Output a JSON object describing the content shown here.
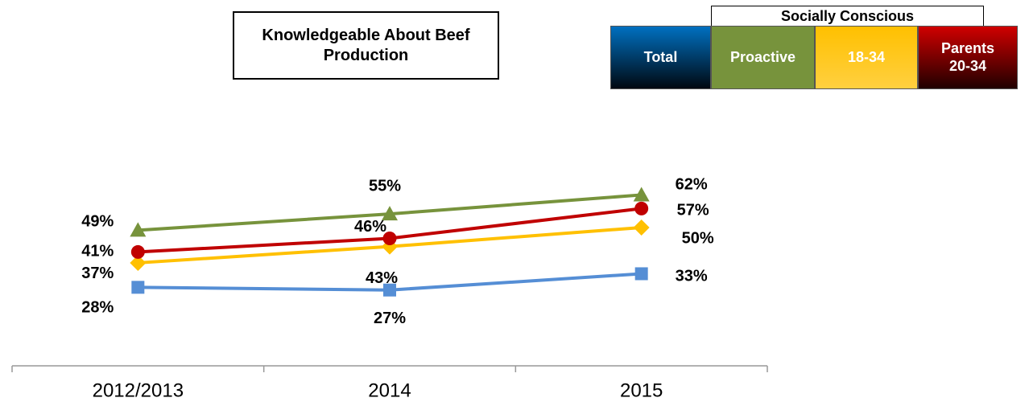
{
  "chart_data": {
    "type": "line",
    "title": "Knowledgeable About Beef Production",
    "legend_group": "Socially Conscious",
    "categories": [
      "2012/2013",
      "2014",
      "2015"
    ],
    "ylim": [
      0,
      100
    ],
    "series": [
      {
        "name": "Total",
        "color": "#558ed5",
        "marker": "square",
        "values": [
          28,
          27,
          33
        ],
        "value_labels": [
          "28%",
          "27%",
          "33%"
        ]
      },
      {
        "name": "Proactive",
        "color": "#77933c",
        "marker": "triangle",
        "values": [
          49,
          55,
          62
        ],
        "value_labels": [
          "49%",
          "55%",
          "62%"
        ]
      },
      {
        "name": "18-34",
        "color": "#ffc000",
        "marker": "diamond",
        "values": [
          37,
          43,
          50
        ],
        "value_labels": [
          "37%",
          "43%",
          "50%"
        ]
      },
      {
        "name": "Parents 20-34",
        "color": "#c00000",
        "marker": "circle",
        "values": [
          41,
          46,
          57
        ],
        "value_labels": [
          "41%",
          "46%",
          "57%"
        ]
      }
    ]
  }
}
